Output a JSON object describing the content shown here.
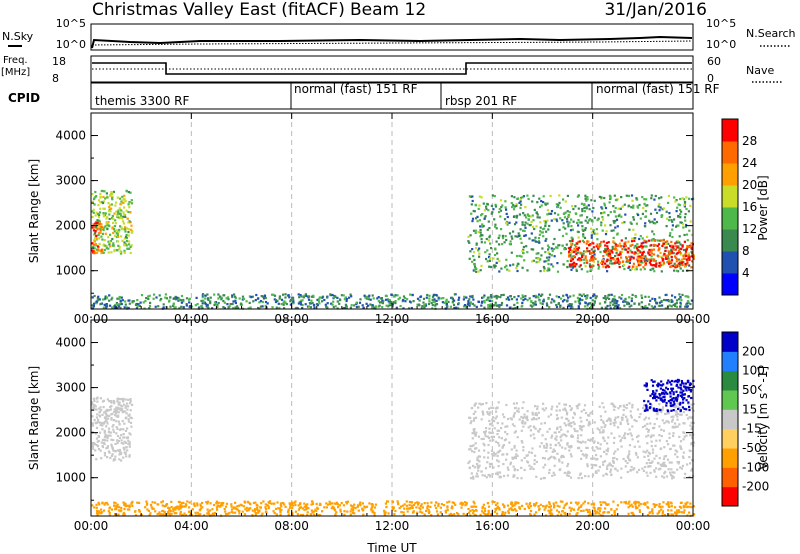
{
  "header": {
    "title": "Christmas Valley East (fitACF)",
    "beam": "Beam 12",
    "date": "31/Jan/2016"
  },
  "nsky_panel": {
    "left_label": "N.Sky",
    "right_label": "N.Search",
    "left_ticks": [
      "10^5",
      "10^0"
    ],
    "right_ticks": [
      "10^5",
      "10^0"
    ]
  },
  "freq_panel": {
    "left_label_1": "Freq.",
    "left_label_2": "[MHz]",
    "right_label": "Nave",
    "left_ticks": [
      "18",
      "8"
    ],
    "right_ticks": [
      "60",
      "0"
    ]
  },
  "cpid_panel": {
    "label": "CPID",
    "segments": [
      "themis 3300 RF",
      "normal (fast) 151 RF",
      "rbsp 201 RF",
      "normal (fast) 151 RF"
    ]
  },
  "colors": {
    "power": [
      "#0000ff",
      "#2050b0",
      "#3a8a50",
      "#4fb84a",
      "#c8dc28",
      "#ffa000",
      "#ff6a00",
      "#ff0000"
    ],
    "velocity": [
      "#0000c8",
      "#2080ff",
      "#2a8a40",
      "#60c850",
      "#c8c8c8",
      "#ffd060",
      "#ffa000",
      "#ff6000",
      "#ff0000"
    ]
  },
  "chart_data": [
    {
      "type": "heatmap",
      "title": "",
      "xlabel": "",
      "ylabel": "Slant Range [km]",
      "x_ticks": [
        "00:00",
        "04:00",
        "08:00",
        "12:00",
        "16:00",
        "20:00",
        "00:00"
      ],
      "y_ticks": [
        "1000",
        "2000",
        "3000",
        "4000"
      ],
      "ylim": [
        150,
        4500
      ],
      "xlim_hours": [
        0,
        24
      ],
      "colorbar_label": "Power [dB]",
      "colorbar_ticks": [
        "28",
        "24",
        "20",
        "16",
        "12",
        "8",
        "4"
      ],
      "colorbar_range": [
        0,
        32
      ],
      "regions": [
        {
          "x": [
            0.0,
            1.6
          ],
          "y": [
            1400,
            2800
          ],
          "value": 16
        },
        {
          "x": [
            0.0,
            0.4
          ],
          "y": [
            1400,
            2100
          ],
          "value": 26
        },
        {
          "x": [
            15.0,
            24.0
          ],
          "y": [
            1000,
            2700
          ],
          "value": 12
        },
        {
          "x": [
            19.0,
            24.0
          ],
          "y": [
            1100,
            1700
          ],
          "value": 28
        },
        {
          "x": [
            0.0,
            24.0
          ],
          "y": [
            180,
            500
          ],
          "value": 10
        }
      ]
    },
    {
      "type": "heatmap",
      "title": "",
      "xlabel": "Time UT",
      "ylabel": "Slant Range [km]",
      "x_ticks": [
        "00:00",
        "04:00",
        "08:00",
        "12:00",
        "16:00",
        "20:00",
        "00:00"
      ],
      "y_ticks": [
        "1000",
        "2000",
        "3000",
        "4000"
      ],
      "ylim": [
        150,
        4500
      ],
      "xlim_hours": [
        0,
        24
      ],
      "colorbar_label": "Velocity [m s^-1]",
      "colorbar_ticks": [
        "200",
        "100",
        "50",
        "15",
        "-15",
        "-50",
        "-100",
        "-200"
      ],
      "regions": [
        {
          "x": [
            0.0,
            1.6
          ],
          "y": [
            1400,
            2800
          ],
          "value": 0
        },
        {
          "x": [
            15.0,
            24.0
          ],
          "y": [
            1000,
            2700
          ],
          "value": 0
        },
        {
          "x": [
            22.0,
            24.0
          ],
          "y": [
            2500,
            3200
          ],
          "value": 220
        },
        {
          "x": [
            0.0,
            24.0
          ],
          "y": [
            180,
            500
          ],
          "value": -60
        }
      ]
    }
  ]
}
